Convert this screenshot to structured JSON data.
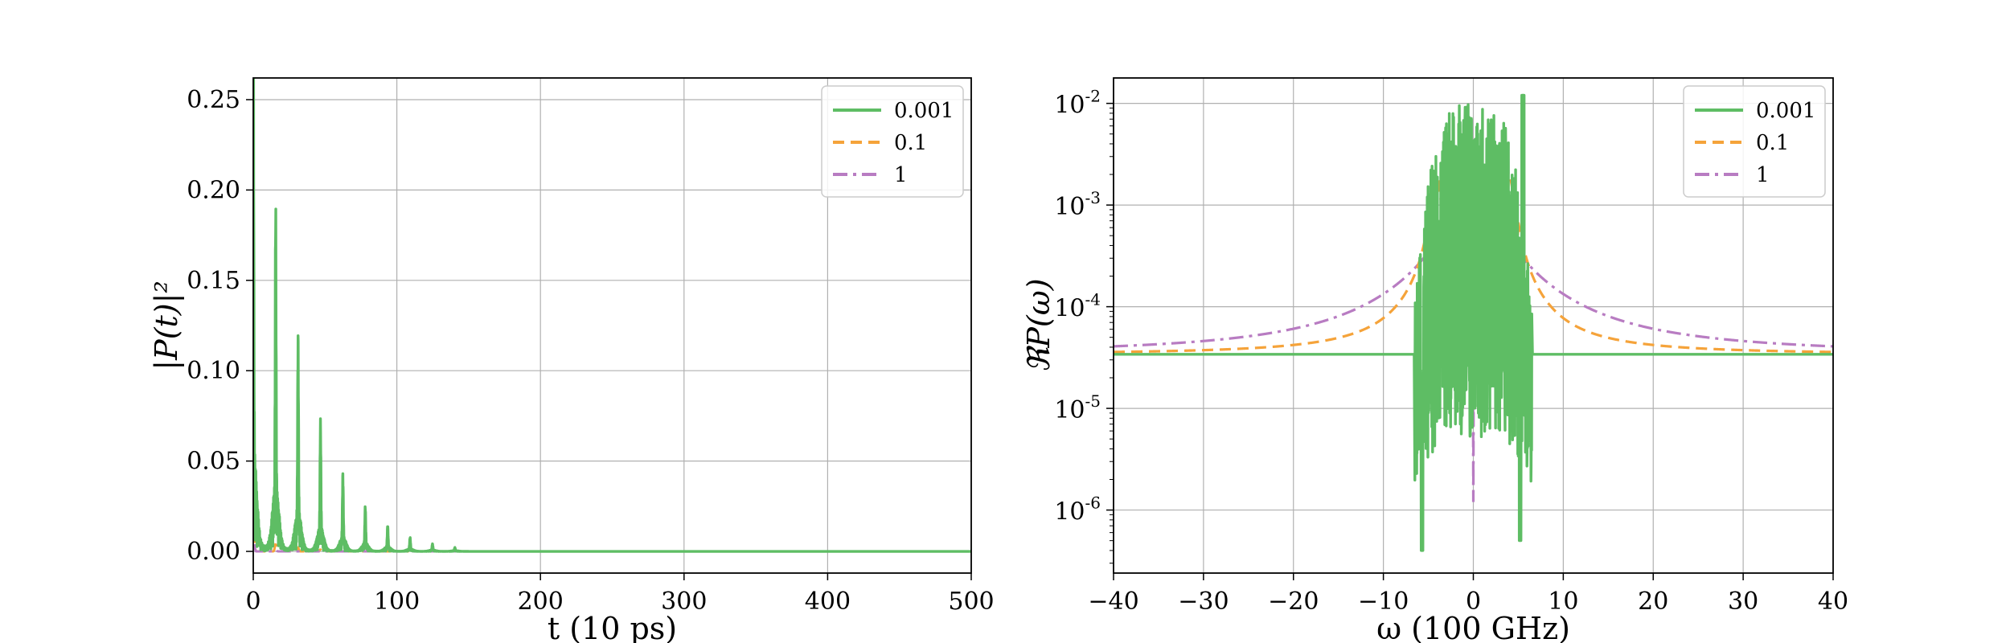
{
  "chart_data": [
    {
      "type": "line",
      "xlabel": "t (10 ps)",
      "ylabel": "|P(t)|²",
      "xlim": [
        0,
        500
      ],
      "ylim": [
        -0.012,
        0.262
      ],
      "xticks": [
        0,
        100,
        200,
        300,
        400,
        500
      ],
      "xtick_labels": [
        "0",
        "100",
        "200",
        "300",
        "400",
        "500"
      ],
      "yticks": [
        0.0,
        0.05,
        0.1,
        0.15,
        0.2,
        0.25
      ],
      "ytick_labels": [
        "0.00",
        "0.05",
        "0.10",
        "0.15",
        "0.20",
        "0.25"
      ],
      "grid": true,
      "legend_position": "top-right",
      "series": [
        {
          "name": "0.001",
          "color": "#5ebd64",
          "dash": "solid",
          "peak_times": [
            0,
            15.6,
            31.2,
            46.8,
            62.4,
            78,
            93.6,
            109.2,
            124.8,
            140.4
          ],
          "peak_values": [
            0.26,
            0.16,
            0.1,
            0.06,
            0.036,
            0.021,
            0.012,
            0.0065,
            0.0035,
            0.0018
          ]
        },
        {
          "name": "0.1",
          "color": "#f5a33a",
          "dash": "dashed",
          "peak_times": [
            0,
            15.6,
            31.2,
            46.8,
            62.4
          ],
          "peak_values": [
            0.05,
            0.004,
            0.002,
            0.001,
            0.0005
          ]
        },
        {
          "name": "1",
          "color": "#b87cc2",
          "dash": "dashdot",
          "peak_times": [
            0,
            15.6
          ],
          "peak_values": [
            0.02,
            0.001
          ]
        }
      ]
    },
    {
      "type": "line",
      "xlabel": "ω (100 GHz)",
      "ylabel": "ℜP(ω)",
      "xlim": [
        -40,
        40
      ],
      "ylim_log10": [
        -6.62,
        -1.75
      ],
      "yscale": "log",
      "xticks": [
        -40,
        -30,
        -20,
        -10,
        0,
        10,
        20,
        30,
        40
      ],
      "xtick_labels": [
        "−40",
        "−30",
        "−20",
        "−10",
        "0",
        "10",
        "20",
        "30",
        "40"
      ],
      "yticks_log10": [
        -2,
        -3,
        -4,
        -5,
        -6
      ],
      "ytick_bases": [
        "10",
        "10",
        "10",
        "10",
        "10"
      ],
      "ytick_exponents": [
        "-2",
        "-3",
        "-4",
        "-5",
        "-6"
      ],
      "grid": true,
      "legend_position": "top-right",
      "series": [
        {
          "name": "0.001",
          "color": "#5ebd64",
          "dash": "solid",
          "baseline": 3.4e-05,
          "band": [
            -6.5,
            6.5
          ],
          "max": 0.012,
          "min": 4e-07
        },
        {
          "name": "0.1",
          "color": "#f5a33a",
          "dash": "dashed",
          "baseline": 3.4e-05,
          "peaks_x": [
            -4,
            4
          ],
          "peak_value": 0.0018
        },
        {
          "name": "1",
          "color": "#b87cc2",
          "dash": "dashdot",
          "baseline": 3.4e-05,
          "peaks_x": [
            -1.2,
            1.2
          ],
          "peak_value": 0.0017,
          "dip_x": 0,
          "dip_value": 1.2e-06
        }
      ]
    }
  ]
}
